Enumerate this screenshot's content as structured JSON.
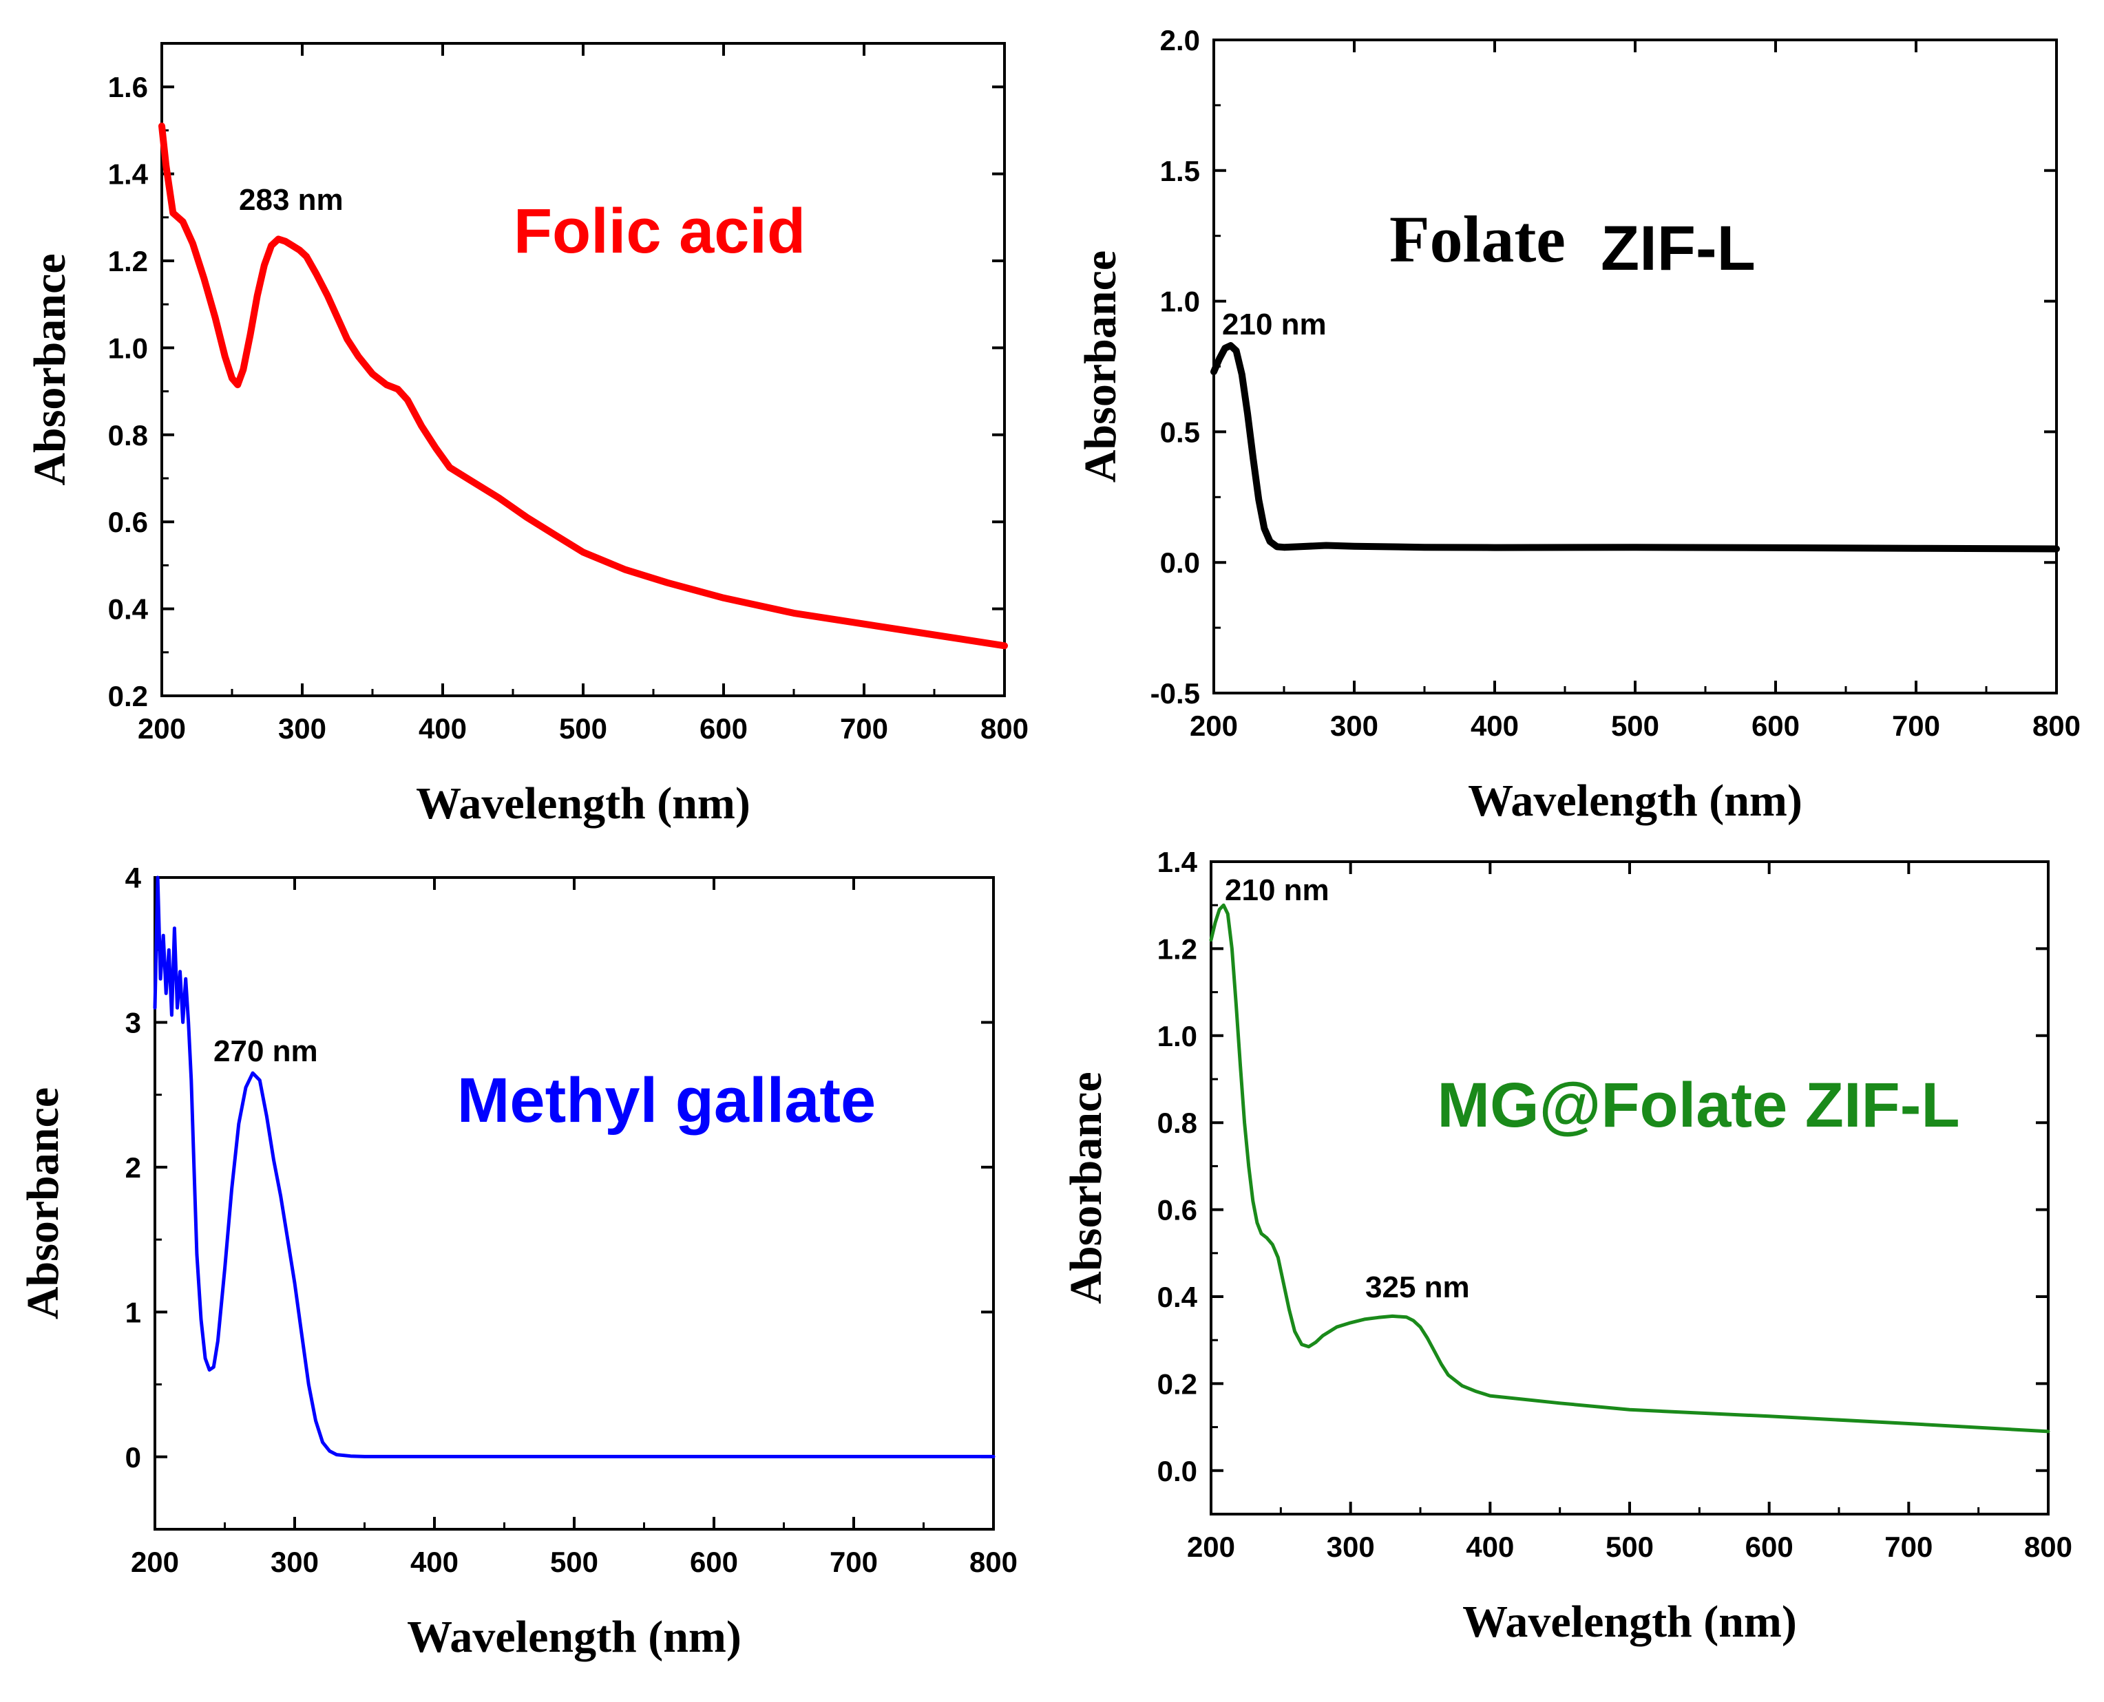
{
  "chart_data": [
    {
      "type": "line",
      "title": "Folic acid",
      "title_color": "#ff0000",
      "xlabel": "Wavelength (nm)",
      "ylabel": "Absorbance",
      "xlim": [
        200,
        800
      ],
      "ylim": [
        0.2,
        1.7
      ],
      "xticks": [
        200,
        300,
        400,
        500,
        600,
        700,
        800
      ],
      "xtick_labels": [
        "200",
        "300",
        "400",
        "500",
        "600",
        "700",
        "800"
      ],
      "yticks": [
        0.2,
        0.4,
        0.6,
        0.8,
        1.0,
        1.2,
        1.4,
        1.6
      ],
      "ytick_labels": [
        "0.2",
        "0.4",
        "0.6",
        "0.8",
        "1.0",
        "1.2",
        "1.4",
        "1.6"
      ],
      "annotations": [
        {
          "text": "283 nm",
          "x": 283,
          "y": 1.25
        }
      ],
      "series": [
        {
          "name": "Folic acid",
          "color": "#ff0000",
          "x": [
            200,
            203,
            208,
            215,
            222,
            230,
            238,
            245,
            250,
            254,
            258,
            263,
            268,
            273,
            278,
            283,
            288,
            293,
            298,
            303,
            310,
            318,
            325,
            332,
            340,
            350,
            360,
            368,
            375,
            385,
            395,
            405,
            420,
            440,
            460,
            480,
            500,
            530,
            560,
            600,
            650,
            700,
            750,
            800
          ],
          "y": [
            1.51,
            1.42,
            1.31,
            1.29,
            1.24,
            1.16,
            1.07,
            0.98,
            0.93,
            0.915,
            0.95,
            1.03,
            1.12,
            1.19,
            1.235,
            1.25,
            1.245,
            1.235,
            1.225,
            1.21,
            1.17,
            1.12,
            1.07,
            1.02,
            0.98,
            0.94,
            0.915,
            0.905,
            0.88,
            0.82,
            0.77,
            0.725,
            0.695,
            0.655,
            0.61,
            0.57,
            0.53,
            0.49,
            0.46,
            0.425,
            0.39,
            0.365,
            0.34,
            0.315
          ]
        }
      ]
    },
    {
      "type": "line",
      "title_part1": "Folate",
      "title_part2": "ZIF-L",
      "title_color": "#000000",
      "xlabel": "Wavelength (nm)",
      "ylabel": "Absorbance",
      "xlim": [
        200,
        800
      ],
      "ylim": [
        -0.5,
        2.0
      ],
      "xticks": [
        200,
        300,
        400,
        500,
        600,
        700,
        800
      ],
      "xtick_labels": [
        "200",
        "300",
        "400",
        "500",
        "600",
        "700",
        "800"
      ],
      "yticks": [
        -0.5,
        0.0,
        0.5,
        1.0,
        1.5,
        2.0
      ],
      "ytick_labels": [
        "-0.5",
        "0.0",
        "0.5",
        "1.0",
        "1.5",
        "2.0"
      ],
      "annotations": [
        {
          "text": "210 nm",
          "x": 210,
          "y": 0.83
        }
      ],
      "series": [
        {
          "name": "Folate ZIF-L",
          "color": "#000000",
          "x": [
            200,
            204,
            208,
            212,
            216,
            220,
            224,
            228,
            232,
            236,
            240,
            245,
            250,
            260,
            280,
            300,
            350,
            400,
            500,
            600,
            700,
            800
          ],
          "y": [
            0.73,
            0.78,
            0.82,
            0.83,
            0.81,
            0.72,
            0.57,
            0.4,
            0.24,
            0.13,
            0.08,
            0.06,
            0.058,
            0.06,
            0.065,
            0.062,
            0.058,
            0.057,
            0.058,
            0.056,
            0.054,
            0.052
          ]
        }
      ]
    },
    {
      "type": "line",
      "title": "Methyl gallate",
      "title_color": "#0000ff",
      "xlabel": "Wavelength (nm)",
      "ylabel": "Absorbance",
      "xlim": [
        200,
        800
      ],
      "ylim": [
        -0.5,
        4
      ],
      "xticks": [
        200,
        300,
        400,
        500,
        600,
        700,
        800
      ],
      "xtick_labels": [
        "200",
        "300",
        "400",
        "500",
        "600",
        "700",
        "800"
      ],
      "yticks": [
        0,
        1,
        2,
        3,
        4
      ],
      "ytick_labels": [
        "0",
        "1",
        "2",
        "3",
        "4"
      ],
      "annotations": [
        {
          "text": "270 nm",
          "x": 270,
          "y": 2.65
        }
      ],
      "series": [
        {
          "name": "Methyl gallate",
          "color": "#0000ff",
          "x": [
            200,
            202,
            204,
            206,
            208,
            210,
            212,
            214,
            216,
            218,
            220,
            222,
            224,
            226,
            228,
            230,
            233,
            236,
            239,
            242,
            245,
            250,
            255,
            260,
            265,
            270,
            275,
            280,
            285,
            290,
            295,
            300,
            305,
            310,
            315,
            320,
            325,
            330,
            340,
            350,
            400,
            500,
            600,
            700,
            800
          ],
          "y": [
            3.1,
            4.0,
            3.3,
            3.6,
            3.2,
            3.5,
            3.05,
            3.65,
            3.1,
            3.35,
            3.0,
            3.3,
            3.0,
            2.6,
            2.0,
            1.4,
            0.95,
            0.68,
            0.6,
            0.62,
            0.8,
            1.3,
            1.85,
            2.3,
            2.55,
            2.65,
            2.6,
            2.35,
            2.05,
            1.8,
            1.5,
            1.2,
            0.85,
            0.5,
            0.25,
            0.1,
            0.04,
            0.015,
            0.005,
            0.002,
            0.002,
            0.002,
            0.002,
            0.002,
            0.002
          ]
        }
      ]
    },
    {
      "type": "line",
      "title": "MG@Folate ZIF-L",
      "title_color": "#1a8a1a",
      "xlabel": "Wavelength (nm)",
      "ylabel": "Absorbance",
      "xlim": [
        200,
        800
      ],
      "ylim": [
        -0.1,
        1.4
      ],
      "xticks": [
        200,
        300,
        400,
        500,
        600,
        700,
        800
      ],
      "xtick_labels": [
        "200",
        "300",
        "400",
        "500",
        "600",
        "700",
        "800"
      ],
      "yticks": [
        0.0,
        0.2,
        0.4,
        0.6,
        0.8,
        1.0,
        1.2,
        1.4
      ],
      "ytick_labels": [
        "0.0",
        "0.2",
        "0.4",
        "0.6",
        "0.8",
        "1.0",
        "1.2",
        "1.4"
      ],
      "annotations": [
        {
          "text": "210 nm",
          "x": 210,
          "y": 1.3
        },
        {
          "text": "325 nm",
          "x": 325,
          "y": 0.355
        }
      ],
      "series": [
        {
          "name": "MG@Folate ZIF-L",
          "color": "#1a8a1a",
          "x": [
            200,
            203,
            206,
            209,
            212,
            215,
            218,
            221,
            224,
            227,
            230,
            233,
            236,
            240,
            244,
            248,
            252,
            256,
            260,
            265,
            270,
            275,
            280,
            290,
            300,
            310,
            320,
            330,
            340,
            345,
            350,
            355,
            360,
            365,
            370,
            380,
            390,
            400,
            450,
            500,
            600,
            700,
            800
          ],
          "y": [
            1.22,
            1.26,
            1.29,
            1.3,
            1.28,
            1.2,
            1.07,
            0.93,
            0.8,
            0.7,
            0.62,
            0.57,
            0.545,
            0.535,
            0.52,
            0.49,
            0.43,
            0.37,
            0.32,
            0.29,
            0.285,
            0.295,
            0.31,
            0.33,
            0.34,
            0.348,
            0.352,
            0.355,
            0.353,
            0.345,
            0.33,
            0.305,
            0.275,
            0.245,
            0.22,
            0.195,
            0.182,
            0.172,
            0.155,
            0.14,
            0.125,
            0.108,
            0.09
          ]
        }
      ]
    }
  ]
}
